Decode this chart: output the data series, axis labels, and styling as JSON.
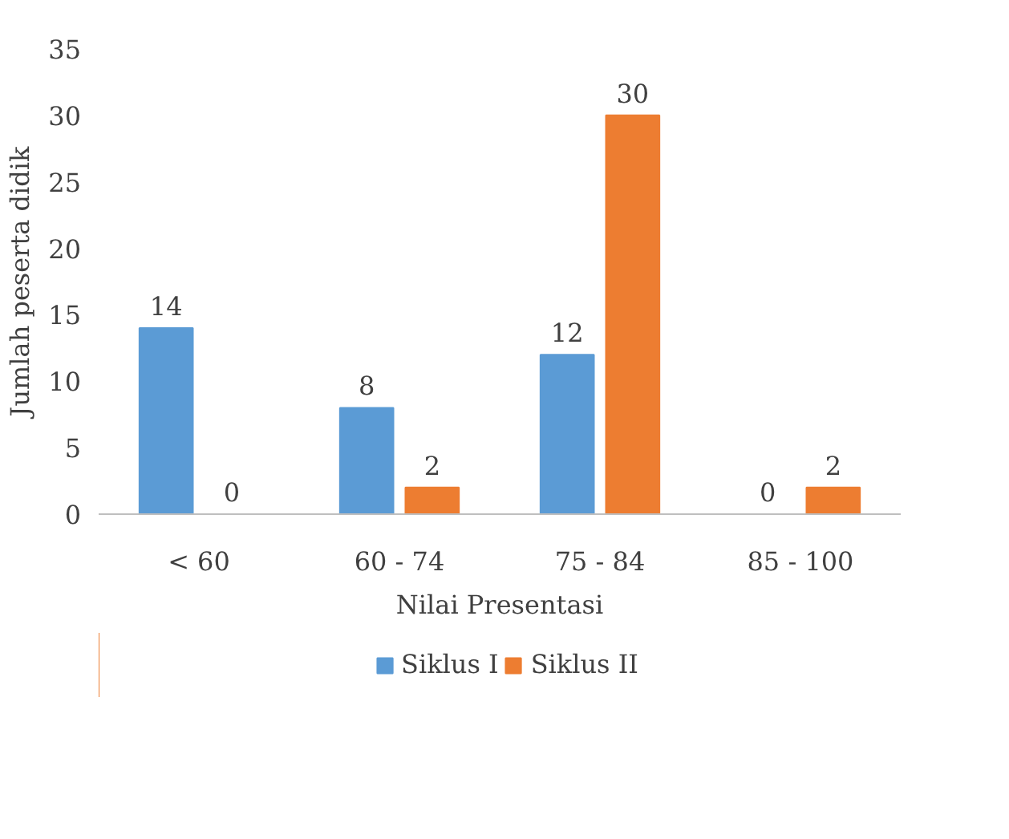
{
  "chart_data": {
    "type": "bar",
    "xlabel": "Nilai Presentasi",
    "ylabel": "Jumlah peserta didik",
    "categories": [
      "< 60",
      "60 - 74",
      "75 - 84",
      "85 - 100"
    ],
    "series": [
      {
        "name": "Siklus I",
        "color": "#5b9bd5",
        "values": [
          14,
          8,
          12,
          0
        ]
      },
      {
        "name": "Siklus II",
        "color": "#ed7d31",
        "values": [
          0,
          2,
          30,
          2
        ]
      }
    ],
    "ylim": [
      0,
      35
    ],
    "yticks": [
      0,
      5,
      10,
      15,
      20,
      25,
      30,
      35
    ],
    "grid": false,
    "legend": "bottom",
    "data_labels": true
  }
}
